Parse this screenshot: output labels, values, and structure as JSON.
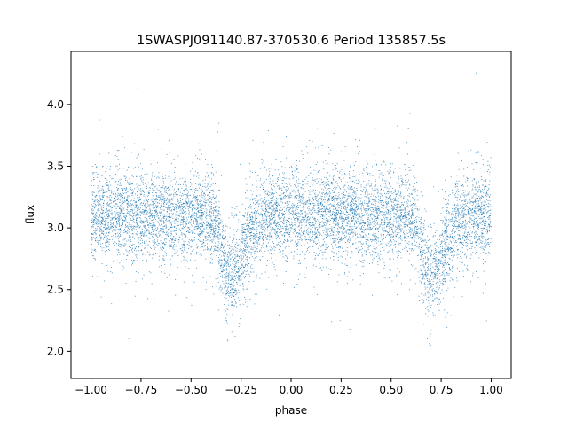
{
  "chart_data": {
    "type": "scatter",
    "title": "1SWASPJ091140.87-370530.6 Period 135857.5s",
    "xlabel": "phase",
    "ylabel": "flux",
    "xlim": [
      -1.1,
      1.1
    ],
    "ylim": [
      1.78,
      4.43
    ],
    "xticks": [
      -1.0,
      -0.75,
      -0.5,
      -0.25,
      0.0,
      0.25,
      0.5,
      0.75,
      1.0
    ],
    "xtick_labels": [
      "−1.00",
      "−0.75",
      "−0.50",
      "−0.25",
      "0.00",
      "0.25",
      "0.50",
      "0.75",
      "1.00"
    ],
    "yticks": [
      2.0,
      2.5,
      3.0,
      3.5,
      4.0
    ],
    "ytick_labels": [
      "2.0",
      "2.5",
      "3.0",
      "3.5",
      "4.0"
    ],
    "grid": false,
    "legend": "none",
    "point_color": "#1f77b4",
    "series": [
      {
        "x_range": [
          -1.0,
          1.0
        ],
        "baseline_flux": 3.1,
        "scatter_sigma": 0.22,
        "eclipses": [
          {
            "phase_center": -0.31,
            "min_flux": 2.62
          },
          {
            "phase_center": 0.69,
            "min_flux": 2.62
          }
        ]
      }
    ]
  }
}
